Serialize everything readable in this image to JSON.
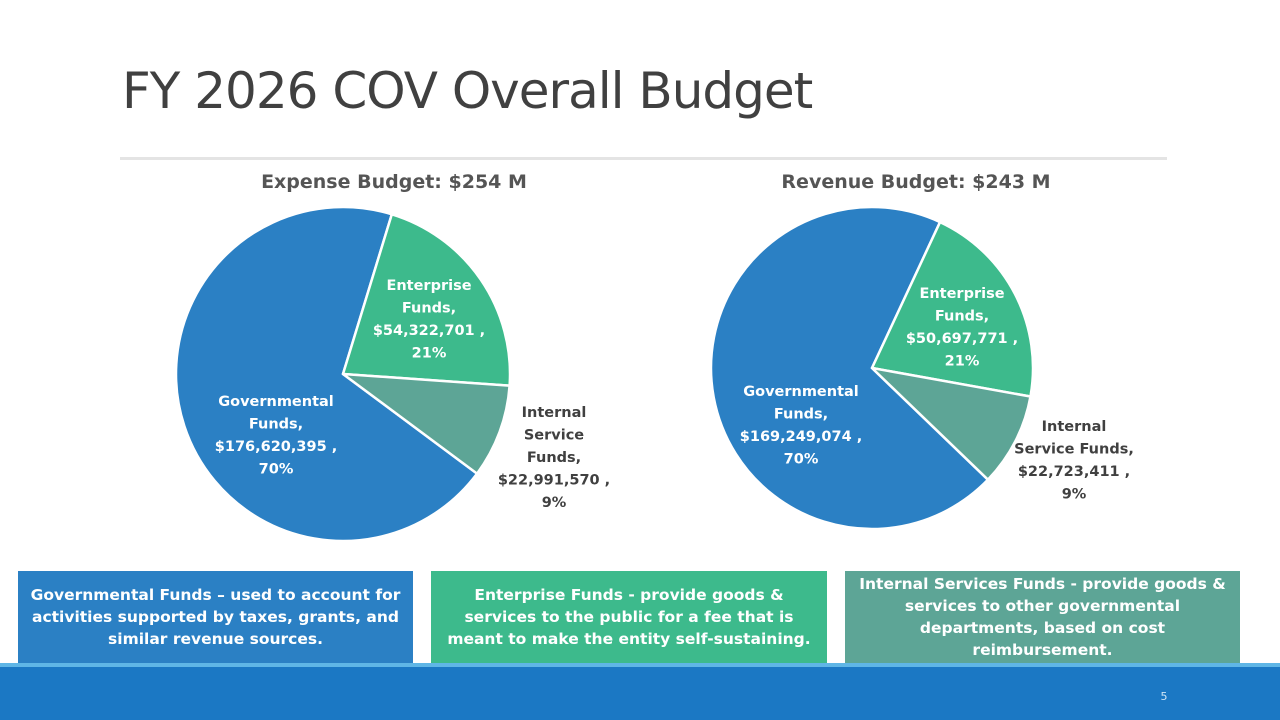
{
  "slide": {
    "title": "FY 2026 COV Overall Budget",
    "page_number": "5"
  },
  "colors": {
    "governmental": "#2b80c4",
    "enterprise": "#3dba8c",
    "internal": "#5da596",
    "footer": "#1b78c4"
  },
  "chart_data": [
    {
      "type": "pie",
      "title": "Expense Budget: $254 M",
      "slices": [
        {
          "name": "Governmental Funds",
          "value": 176620395,
          "percent": 70,
          "label_lines": [
            "Governmental",
            "Funds,",
            "$176,620,395 ,",
            "70%"
          ]
        },
        {
          "name": "Enterprise Funds",
          "value": 54322701,
          "percent": 21,
          "label_lines": [
            "Enterprise",
            "Funds,",
            "$54,322,701 ,",
            "21%"
          ]
        },
        {
          "name": "Internal Service Funds",
          "value": 22991570,
          "percent": 9,
          "label_lines": [
            "Internal",
            "Service",
            "Funds,",
            "$22,991,570 ,",
            "9%"
          ]
        }
      ]
    },
    {
      "type": "pie",
      "title": "Revenue Budget: $243 M",
      "slices": [
        {
          "name": "Governmental Funds",
          "value": 169249074,
          "percent": 70,
          "label_lines": [
            "Governmental",
            "Funds,",
            "$169,249,074 ,",
            "70%"
          ]
        },
        {
          "name": "Enterprise Funds",
          "value": 50697771,
          "percent": 21,
          "label_lines": [
            "Enterprise",
            "Funds,",
            "$50,697,771 ,",
            "21%"
          ]
        },
        {
          "name": "Internal Service Funds",
          "value": 22723411,
          "percent": 9,
          "label_lines": [
            "Internal",
            "Service Funds,",
            "$22,723,411 ,",
            "9%"
          ]
        }
      ]
    }
  ],
  "descriptions": [
    {
      "text": "Governmental Funds –  used to account for activities supported by taxes, grants, and similar revenue sources."
    },
    {
      "text": "Enterprise Funds - provide goods & services to the public for a fee that is meant to make the entity self-sustaining."
    },
    {
      "text": "Internal Services Funds - provide goods & services to other governmental departments, based on cost reimbursement."
    }
  ]
}
